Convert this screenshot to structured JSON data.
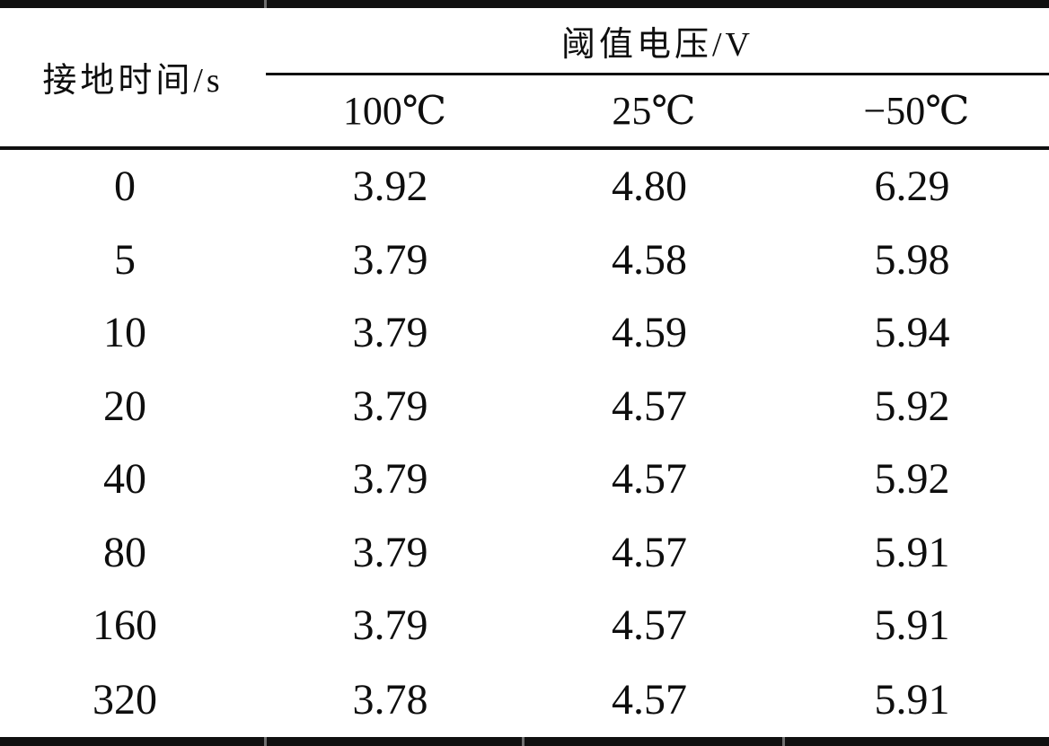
{
  "table": {
    "row_header": {
      "label": "接地时间/s"
    },
    "group_header": {
      "label": "阈值电压/V"
    },
    "columns": [
      "100℃",
      "25℃",
      "−50℃"
    ],
    "rows": [
      {
        "time": "0",
        "values": [
          "3.92",
          "4.80",
          "6.29"
        ]
      },
      {
        "time": "5",
        "values": [
          "3.79",
          "4.58",
          "5.98"
        ]
      },
      {
        "time": "10",
        "values": [
          "3.79",
          "4.59",
          "5.94"
        ]
      },
      {
        "time": "20",
        "values": [
          "3.79",
          "4.57",
          "5.92"
        ]
      },
      {
        "time": "40",
        "values": [
          "3.79",
          "4.57",
          "5.92"
        ]
      },
      {
        "time": "80",
        "values": [
          "3.79",
          "4.57",
          "5.91"
        ]
      },
      {
        "time": "160",
        "values": [
          "3.79",
          "4.57",
          "5.91"
        ]
      },
      {
        "time": "320",
        "values": [
          "3.78",
          "4.57",
          "5.91"
        ]
      }
    ]
  },
  "chart_data": {
    "type": "table",
    "title": "阈值电压/V",
    "row_axis_label": "接地时间/s",
    "columns": [
      "100℃",
      "25℃",
      "−50℃"
    ],
    "x": [
      0,
      5,
      10,
      20,
      40,
      80,
      160,
      320
    ],
    "series": [
      {
        "name": "100℃",
        "values": [
          3.92,
          3.79,
          3.79,
          3.79,
          3.79,
          3.79,
          3.79,
          3.78
        ]
      },
      {
        "name": "25℃",
        "values": [
          4.8,
          4.58,
          4.59,
          4.57,
          4.57,
          4.57,
          4.57,
          4.57
        ]
      },
      {
        "name": "−50℃",
        "values": [
          6.29,
          5.98,
          5.94,
          5.92,
          5.92,
          5.91,
          5.91,
          5.91
        ]
      }
    ]
  },
  "style": {
    "rule_color": "#101010",
    "text_color": "#0e0e0e",
    "background": "#ffffff"
  }
}
